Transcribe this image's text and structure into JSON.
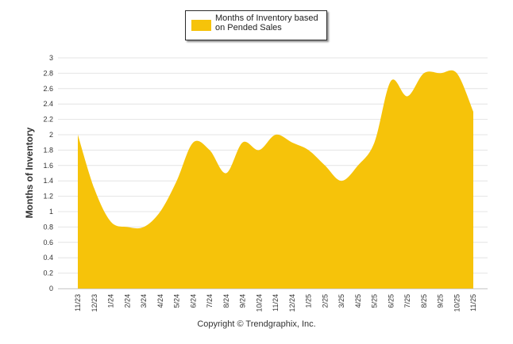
{
  "chart_data": {
    "type": "area",
    "title": "",
    "xlabel": "",
    "ylabel": "Months of Inventory",
    "ylim": [
      0,
      3
    ],
    "yticks": [
      "0",
      "0.2",
      "0.4",
      "0.6",
      "0.8",
      "1",
      "1.2",
      "1.4",
      "1.6",
      "1.8",
      "2",
      "2.2",
      "2.4",
      "2.6",
      "2.8",
      "3"
    ],
    "grid": true,
    "legend_position": "top-center",
    "categories": [
      "11/23",
      "12/23",
      "1/24",
      "2/24",
      "3/24",
      "4/24",
      "5/24",
      "6/24",
      "7/24",
      "8/24",
      "9/24",
      "10/24",
      "11/24",
      "12/24",
      "1/25",
      "2/25",
      "3/25",
      "4/25",
      "5/25",
      "6/25",
      "7/25",
      "8/25",
      "9/25",
      "10/25",
      "11/25"
    ],
    "series": [
      {
        "name": "Months of Inventory based on Pended Sales",
        "color": "#f6c30a",
        "values": [
          2.0,
          1.3,
          0.87,
          0.8,
          0.8,
          1.0,
          1.4,
          1.9,
          1.8,
          1.5,
          1.9,
          1.8,
          2.0,
          1.9,
          1.8,
          1.6,
          1.4,
          1.6,
          1.9,
          2.7,
          2.5,
          2.8,
          2.8,
          2.8,
          2.3
        ]
      }
    ]
  },
  "legend": {
    "label": "Months of Inventory based\non Pended Sales",
    "color": "#f6c30a"
  },
  "footer": {
    "copyright": "Copyright © Trendgraphix, Inc."
  }
}
